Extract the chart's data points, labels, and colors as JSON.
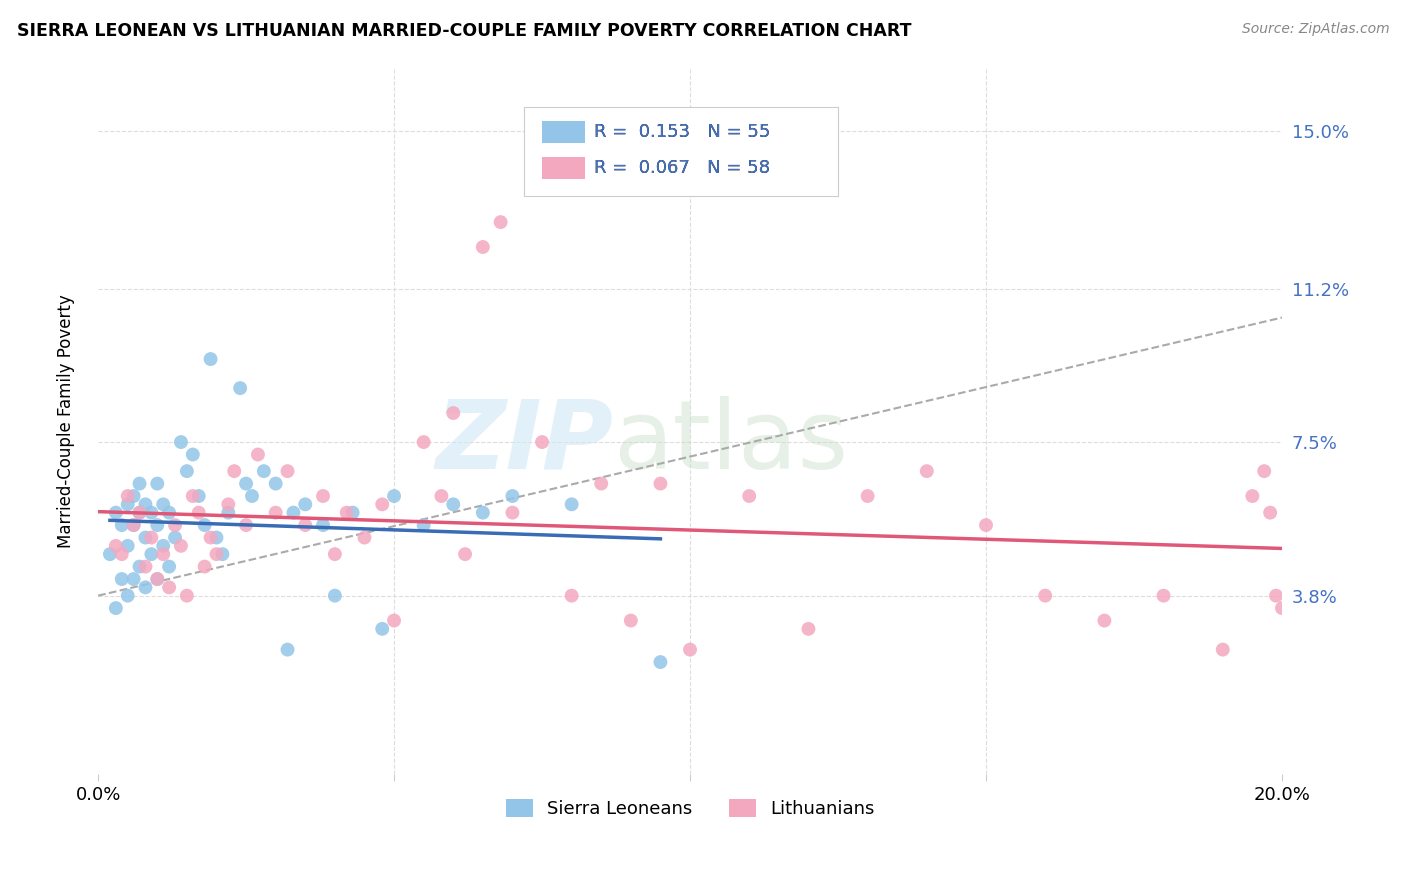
{
  "title": "SIERRA LEONEAN VS LITHUANIAN MARRIED-COUPLE FAMILY POVERTY CORRELATION CHART",
  "source": "Source: ZipAtlas.com",
  "ylabel": "Married-Couple Family Poverty",
  "ytick_labels": [
    "15.0%",
    "11.2%",
    "7.5%",
    "3.8%"
  ],
  "ytick_values": [
    0.15,
    0.112,
    0.075,
    0.038
  ],
  "xlim": [
    0.0,
    0.2
  ],
  "ylim": [
    -0.005,
    0.165
  ],
  "legend_blue_r": "0.153",
  "legend_blue_n": "55",
  "legend_pink_r": "0.067",
  "legend_pink_n": "58",
  "color_blue": "#92C5E8",
  "color_pink": "#F4A8C0",
  "color_blue_line": "#3A6BB5",
  "color_pink_line": "#E05878",
  "color_dashed": "#AAAAAA",
  "sierra_x": [
    0.002,
    0.003,
    0.003,
    0.004,
    0.004,
    0.005,
    0.005,
    0.005,
    0.006,
    0.006,
    0.006,
    0.007,
    0.007,
    0.007,
    0.008,
    0.008,
    0.008,
    0.009,
    0.009,
    0.01,
    0.01,
    0.01,
    0.011,
    0.011,
    0.012,
    0.012,
    0.013,
    0.014,
    0.015,
    0.016,
    0.017,
    0.018,
    0.019,
    0.02,
    0.021,
    0.022,
    0.024,
    0.025,
    0.026,
    0.028,
    0.03,
    0.032,
    0.033,
    0.035,
    0.038,
    0.04,
    0.043,
    0.048,
    0.05,
    0.055,
    0.06,
    0.065,
    0.07,
    0.08,
    0.095
  ],
  "sierra_y": [
    0.048,
    0.058,
    0.035,
    0.055,
    0.042,
    0.06,
    0.05,
    0.038,
    0.062,
    0.055,
    0.042,
    0.065,
    0.058,
    0.045,
    0.06,
    0.052,
    0.04,
    0.058,
    0.048,
    0.065,
    0.055,
    0.042,
    0.06,
    0.05,
    0.058,
    0.045,
    0.052,
    0.075,
    0.068,
    0.072,
    0.062,
    0.055,
    0.095,
    0.052,
    0.048,
    0.058,
    0.088,
    0.065,
    0.062,
    0.068,
    0.065,
    0.025,
    0.058,
    0.06,
    0.055,
    0.038,
    0.058,
    0.03,
    0.062,
    0.055,
    0.06,
    0.058,
    0.062,
    0.06,
    0.022
  ],
  "lith_x": [
    0.003,
    0.004,
    0.005,
    0.006,
    0.007,
    0.008,
    0.009,
    0.01,
    0.011,
    0.012,
    0.013,
    0.014,
    0.015,
    0.016,
    0.017,
    0.018,
    0.019,
    0.02,
    0.022,
    0.023,
    0.025,
    0.027,
    0.03,
    0.032,
    0.035,
    0.038,
    0.04,
    0.042,
    0.045,
    0.048,
    0.05,
    0.055,
    0.058,
    0.06,
    0.062,
    0.065,
    0.068,
    0.07,
    0.075,
    0.08,
    0.085,
    0.09,
    0.095,
    0.1,
    0.11,
    0.12,
    0.13,
    0.14,
    0.15,
    0.16,
    0.17,
    0.18,
    0.19,
    0.195,
    0.197,
    0.198,
    0.199,
    0.2
  ],
  "lith_y": [
    0.05,
    0.048,
    0.062,
    0.055,
    0.058,
    0.045,
    0.052,
    0.042,
    0.048,
    0.04,
    0.055,
    0.05,
    0.038,
    0.062,
    0.058,
    0.045,
    0.052,
    0.048,
    0.06,
    0.068,
    0.055,
    0.072,
    0.058,
    0.068,
    0.055,
    0.062,
    0.048,
    0.058,
    0.052,
    0.06,
    0.032,
    0.075,
    0.062,
    0.082,
    0.048,
    0.122,
    0.128,
    0.058,
    0.075,
    0.038,
    0.065,
    0.032,
    0.065,
    0.025,
    0.062,
    0.03,
    0.062,
    0.068,
    0.055,
    0.038,
    0.032,
    0.038,
    0.025,
    0.062,
    0.068,
    0.058,
    0.038,
    0.035
  ]
}
